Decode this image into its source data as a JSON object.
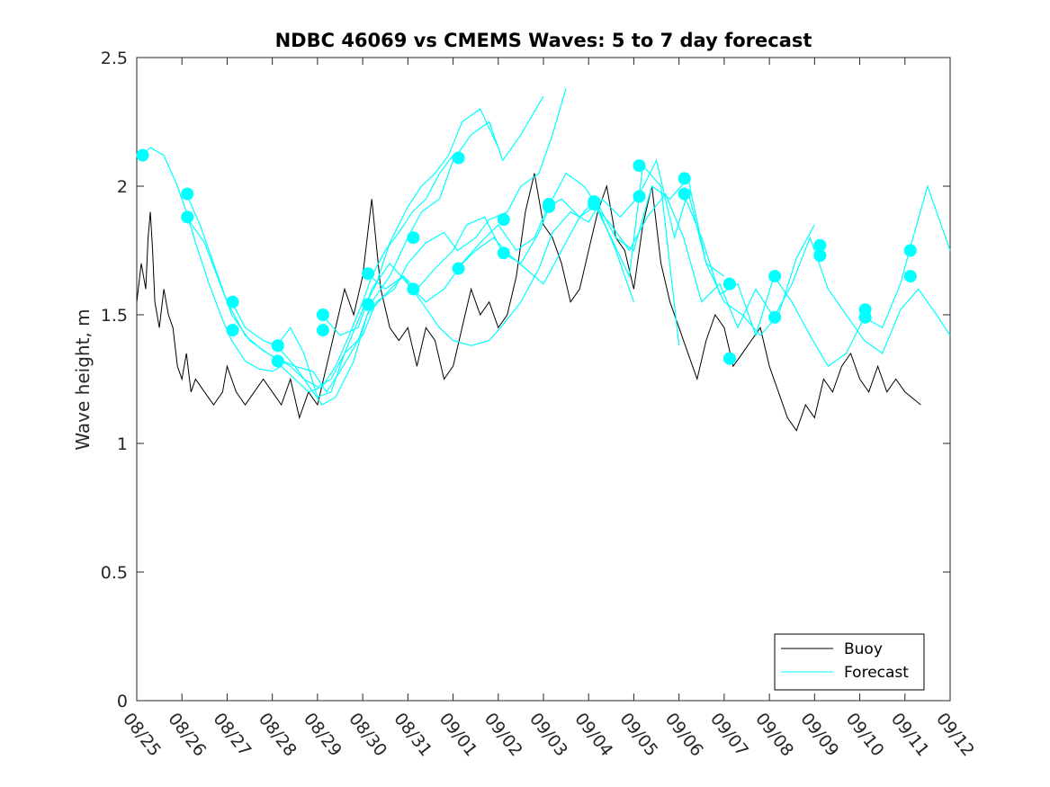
{
  "chart_data": {
    "type": "line",
    "title": "NDBC 46069 vs CMEMS Waves: 5 to 7 day forecast",
    "ylabel": "Wave height, m",
    "xlabel": "",
    "ylim": [
      0,
      2.5
    ],
    "xlim": [
      0,
      18
    ],
    "yticks": [
      0,
      0.5,
      1,
      1.5,
      2,
      2.5
    ],
    "ytick_labels": [
      "0",
      "0.5",
      "1",
      "1.5",
      "2",
      "2.5"
    ],
    "xtick_labels": [
      "08/25",
      "08/26",
      "08/27",
      "08/28",
      "08/29",
      "08/30",
      "08/31",
      "09/01",
      "09/02",
      "09/03",
      "09/04",
      "09/05",
      "09/06",
      "09/07",
      "09/08",
      "09/09",
      "09/10",
      "09/11",
      "09/12"
    ],
    "legend": {
      "position": "bottom-right",
      "entries": [
        {
          "label": "Buoy",
          "color": "#000000"
        },
        {
          "label": "Forecast",
          "color": "#00FFFF"
        }
      ]
    },
    "buoy": {
      "name": "Buoy",
      "color": "#000000",
      "x": [
        0,
        0.1,
        0.2,
        0.25,
        0.3,
        0.35,
        0.4,
        0.5,
        0.6,
        0.7,
        0.8,
        0.9,
        1.0,
        1.1,
        1.2,
        1.3,
        1.5,
        1.7,
        1.9,
        2.0,
        2.2,
        2.4,
        2.6,
        2.8,
        3.0,
        3.2,
        3.4,
        3.6,
        3.8,
        4.0,
        4.2,
        4.4,
        4.6,
        4.8,
        5.0,
        5.2,
        5.4,
        5.6,
        5.8,
        6.0,
        6.2,
        6.4,
        6.6,
        6.8,
        7.0,
        7.2,
        7.4,
        7.6,
        7.8,
        8.0,
        8.2,
        8.4,
        8.6,
        8.8,
        9.0,
        9.2,
        9.4,
        9.6,
        9.8,
        10.0,
        10.2,
        10.4,
        10.6,
        10.8,
        11.0,
        11.2,
        11.4,
        11.6,
        11.8,
        12.0,
        12.2,
        12.4,
        12.6,
        12.8,
        13.0,
        13.2,
        13.4,
        13.6,
        13.8,
        14.0,
        14.2,
        14.4,
        14.6,
        14.8,
        15.0,
        15.2,
        15.4,
        15.6,
        15.8,
        16.0,
        16.2,
        16.4,
        16.6,
        16.8,
        17.0,
        17.35
      ],
      "y": [
        1.55,
        1.7,
        1.6,
        1.8,
        1.9,
        1.75,
        1.55,
        1.45,
        1.6,
        1.5,
        1.45,
        1.3,
        1.25,
        1.35,
        1.2,
        1.25,
        1.2,
        1.15,
        1.2,
        1.3,
        1.2,
        1.15,
        1.2,
        1.25,
        1.2,
        1.15,
        1.25,
        1.1,
        1.2,
        1.15,
        1.3,
        1.45,
        1.6,
        1.5,
        1.65,
        1.95,
        1.6,
        1.45,
        1.4,
        1.45,
        1.3,
        1.45,
        1.4,
        1.25,
        1.3,
        1.45,
        1.6,
        1.5,
        1.55,
        1.45,
        1.5,
        1.65,
        1.9,
        2.05,
        1.85,
        1.8,
        1.7,
        1.55,
        1.6,
        1.75,
        1.9,
        2.0,
        1.8,
        1.75,
        1.6,
        1.85,
        2.0,
        1.7,
        1.55,
        1.45,
        1.35,
        1.25,
        1.4,
        1.5,
        1.45,
        1.3,
        1.35,
        1.4,
        1.45,
        1.3,
        1.2,
        1.1,
        1.05,
        1.15,
        1.1,
        1.25,
        1.2,
        1.3,
        1.35,
        1.25,
        1.2,
        1.3,
        1.2,
        1.25,
        1.2,
        1.15
      ]
    },
    "forecasts": [
      {
        "name": "Forecast",
        "x": [
          0.1,
          0.3,
          0.6,
          0.9,
          1.1,
          1.3,
          1.6,
          1.9,
          2.1,
          2.4,
          2.7,
          3.0,
          3.2,
          3.5,
          3.8,
          4.1,
          4.4,
          4.7,
          5.0,
          5.2,
          5.5,
          5.8,
          6.1,
          6.4,
          6.7,
          7.0
        ],
        "y": [
          2.12,
          2.15,
          2.12,
          2.0,
          1.9,
          1.78,
          1.62,
          1.48,
          1.4,
          1.32,
          1.29,
          1.28,
          1.3,
          1.25,
          1.2,
          1.22,
          1.3,
          1.42,
          1.55,
          1.65,
          1.75,
          1.82,
          1.9,
          1.95,
          2.05,
          2.12
        ]
      },
      {
        "name": "Forecast",
        "x": [
          1.1,
          1.4,
          1.8,
          2.1,
          2.5,
          2.9,
          3.1,
          3.4,
          3.7,
          4.0,
          4.3,
          4.6,
          5.0,
          5.3,
          5.6,
          6.0,
          6.3,
          6.6,
          6.9,
          7.2,
          7.6,
          8.0
        ],
        "y": [
          1.97,
          1.85,
          1.65,
          1.5,
          1.4,
          1.35,
          1.33,
          1.3,
          1.25,
          1.22,
          1.25,
          1.35,
          1.52,
          1.62,
          1.78,
          1.92,
          2.0,
          2.05,
          2.12,
          2.25,
          2.3,
          2.15
        ]
      },
      {
        "name": "Forecast",
        "x": [
          1.1,
          1.5,
          2.0,
          2.4,
          2.8,
          3.1,
          3.5,
          3.9,
          4.2,
          4.5,
          4.9,
          5.2,
          5.6,
          6.0,
          6.3,
          6.7,
          7.0,
          7.4,
          7.8,
          8.1,
          8.5,
          9.0
        ],
        "y": [
          1.88,
          1.78,
          1.55,
          1.42,
          1.36,
          1.33,
          1.3,
          1.28,
          1.2,
          1.28,
          1.4,
          1.55,
          1.65,
          1.8,
          1.9,
          1.95,
          2.1,
          2.2,
          2.25,
          2.1,
          2.2,
          2.35
        ]
      },
      {
        "name": "Forecast",
        "x": [
          2.1,
          2.4,
          2.8,
          3.1,
          3.4,
          3.7,
          4.0,
          4.3,
          4.6,
          5.0,
          5.3,
          5.7,
          6.0,
          6.4,
          6.8,
          7.1,
          7.5,
          7.8,
          8.2,
          8.5,
          8.9,
          9.2,
          9.5
        ],
        "y": [
          1.55,
          1.45,
          1.4,
          1.38,
          1.45,
          1.35,
          1.18,
          1.2,
          1.35,
          1.42,
          1.55,
          1.6,
          1.7,
          1.78,
          1.82,
          1.75,
          1.8,
          1.87,
          1.9,
          2.0,
          2.05,
          2.2,
          2.38
        ]
      },
      {
        "name": "Forecast",
        "x": [
          3.1,
          3.5,
          3.9,
          4.1,
          4.4,
          4.8,
          5.1,
          5.5,
          5.9,
          6.2,
          6.6,
          7.0,
          7.3,
          7.7,
          8.1,
          8.5,
          8.9,
          9.2,
          9.5,
          9.9,
          10.2,
          10.6,
          11.0
        ],
        "y": [
          1.38,
          1.3,
          1.2,
          1.15,
          1.18,
          1.32,
          1.5,
          1.58,
          1.65,
          1.6,
          1.68,
          1.75,
          1.85,
          1.88,
          1.74,
          1.7,
          1.82,
          1.95,
          2.05,
          2.0,
          1.92,
          1.75,
          1.55
        ]
      },
      {
        "name": "Forecast",
        "x": [
          4.1,
          4.5,
          4.9,
          5.2,
          5.6,
          6.0,
          6.4,
          6.8,
          7.2,
          7.6,
          8.0,
          8.4,
          8.8,
          9.1,
          9.4,
          9.8,
          10.1,
          10.5,
          10.9,
          11.2,
          11.6,
          12.0
        ],
        "y": [
          1.5,
          1.42,
          1.45,
          1.6,
          1.7,
          1.62,
          1.55,
          1.6,
          1.7,
          1.78,
          1.85,
          1.75,
          1.8,
          1.92,
          1.95,
          1.88,
          1.94,
          1.8,
          1.65,
          2.08,
          2.0,
          1.38
        ]
      },
      {
        "name": "Forecast",
        "x": [
          5.1,
          5.5,
          5.9,
          6.3,
          6.7,
          7.0,
          7.4,
          7.8,
          8.1,
          8.5,
          8.9,
          9.2,
          9.6,
          10.0,
          10.3,
          10.7,
          11.1,
          11.5,
          11.9,
          12.2,
          12.6,
          13.0
        ],
        "y": [
          1.66,
          1.6,
          1.65,
          1.55,
          1.45,
          1.4,
          1.38,
          1.4,
          1.46,
          1.55,
          1.68,
          1.82,
          1.9,
          1.86,
          1.95,
          1.88,
          1.96,
          2.1,
          1.8,
          1.98,
          1.7,
          1.65
        ]
      },
      {
        "name": "Forecast",
        "x": [
          7.1,
          7.5,
          7.9,
          8.2,
          8.6,
          9.0,
          9.4,
          9.8,
          10.2,
          10.6,
          11.0,
          11.4,
          11.8,
          12.2,
          12.6,
          13.0,
          13.4,
          13.8,
          14.2,
          14.6,
          15.0
        ],
        "y": [
          1.68,
          1.75,
          1.8,
          1.74,
          1.68,
          1.62,
          1.75,
          1.88,
          1.93,
          1.8,
          1.75,
          2.0,
          1.95,
          2.03,
          1.7,
          1.55,
          1.5,
          1.42,
          1.5,
          1.72,
          1.85
        ]
      },
      {
        "name": "Forecast",
        "x": [
          10.1,
          10.5,
          10.9,
          11.3,
          11.7,
          12.1,
          12.5,
          12.9,
          13.3,
          13.7,
          14.1,
          14.5,
          14.9,
          15.3,
          15.7,
          16.1,
          16.5,
          16.9,
          17.3,
          17.7,
          18.0
        ],
        "y": [
          1.93,
          1.85,
          1.75,
          1.88,
          1.97,
          1.8,
          1.55,
          1.62,
          1.45,
          1.6,
          1.49,
          1.62,
          1.8,
          1.6,
          1.5,
          1.4,
          1.35,
          1.52,
          1.6,
          1.5,
          1.42
        ]
      },
      {
        "name": "Forecast",
        "x": [
          12.1,
          12.5,
          12.9,
          13.3,
          13.7,
          14.1,
          14.5,
          14.9,
          15.3,
          15.7,
          16.1,
          16.5,
          16.9,
          17.1,
          17.5,
          17.8,
          18.0
        ],
        "y": [
          1.97,
          1.8,
          1.58,
          1.62,
          1.42,
          1.65,
          1.55,
          1.42,
          1.3,
          1.35,
          1.49,
          1.45,
          1.62,
          1.75,
          2.0,
          1.85,
          1.75
        ]
      }
    ],
    "forecast_markers": [
      {
        "x": 0.13,
        "y": 2.12
      },
      {
        "x": 1.12,
        "y": 1.97
      },
      {
        "x": 1.12,
        "y": 1.88
      },
      {
        "x": 2.12,
        "y": 1.55
      },
      {
        "x": 2.12,
        "y": 1.44
      },
      {
        "x": 3.12,
        "y": 1.38
      },
      {
        "x": 3.12,
        "y": 1.32
      },
      {
        "x": 4.12,
        "y": 1.5
      },
      {
        "x": 4.12,
        "y": 1.44
      },
      {
        "x": 5.12,
        "y": 1.66
      },
      {
        "x": 5.12,
        "y": 1.54
      },
      {
        "x": 6.12,
        "y": 1.8
      },
      {
        "x": 6.12,
        "y": 1.6
      },
      {
        "x": 7.12,
        "y": 2.11
      },
      {
        "x": 7.12,
        "y": 1.68
      },
      {
        "x": 8.12,
        "y": 1.87
      },
      {
        "x": 8.12,
        "y": 1.74
      },
      {
        "x": 9.12,
        "y": 1.93
      },
      {
        "x": 9.12,
        "y": 1.92
      },
      {
        "x": 10.12,
        "y": 1.94
      },
      {
        "x": 10.12,
        "y": 1.93
      },
      {
        "x": 11.12,
        "y": 2.08
      },
      {
        "x": 11.12,
        "y": 1.96
      },
      {
        "x": 12.12,
        "y": 2.03
      },
      {
        "x": 12.12,
        "y": 1.97
      },
      {
        "x": 13.12,
        "y": 1.62
      },
      {
        "x": 13.12,
        "y": 1.33
      },
      {
        "x": 14.12,
        "y": 1.65
      },
      {
        "x": 14.12,
        "y": 1.49
      },
      {
        "x": 15.12,
        "y": 1.77
      },
      {
        "x": 15.12,
        "y": 1.73
      },
      {
        "x": 16.12,
        "y": 1.52
      },
      {
        "x": 16.12,
        "y": 1.49
      },
      {
        "x": 17.12,
        "y": 1.75
      },
      {
        "x": 17.12,
        "y": 1.65
      }
    ]
  }
}
